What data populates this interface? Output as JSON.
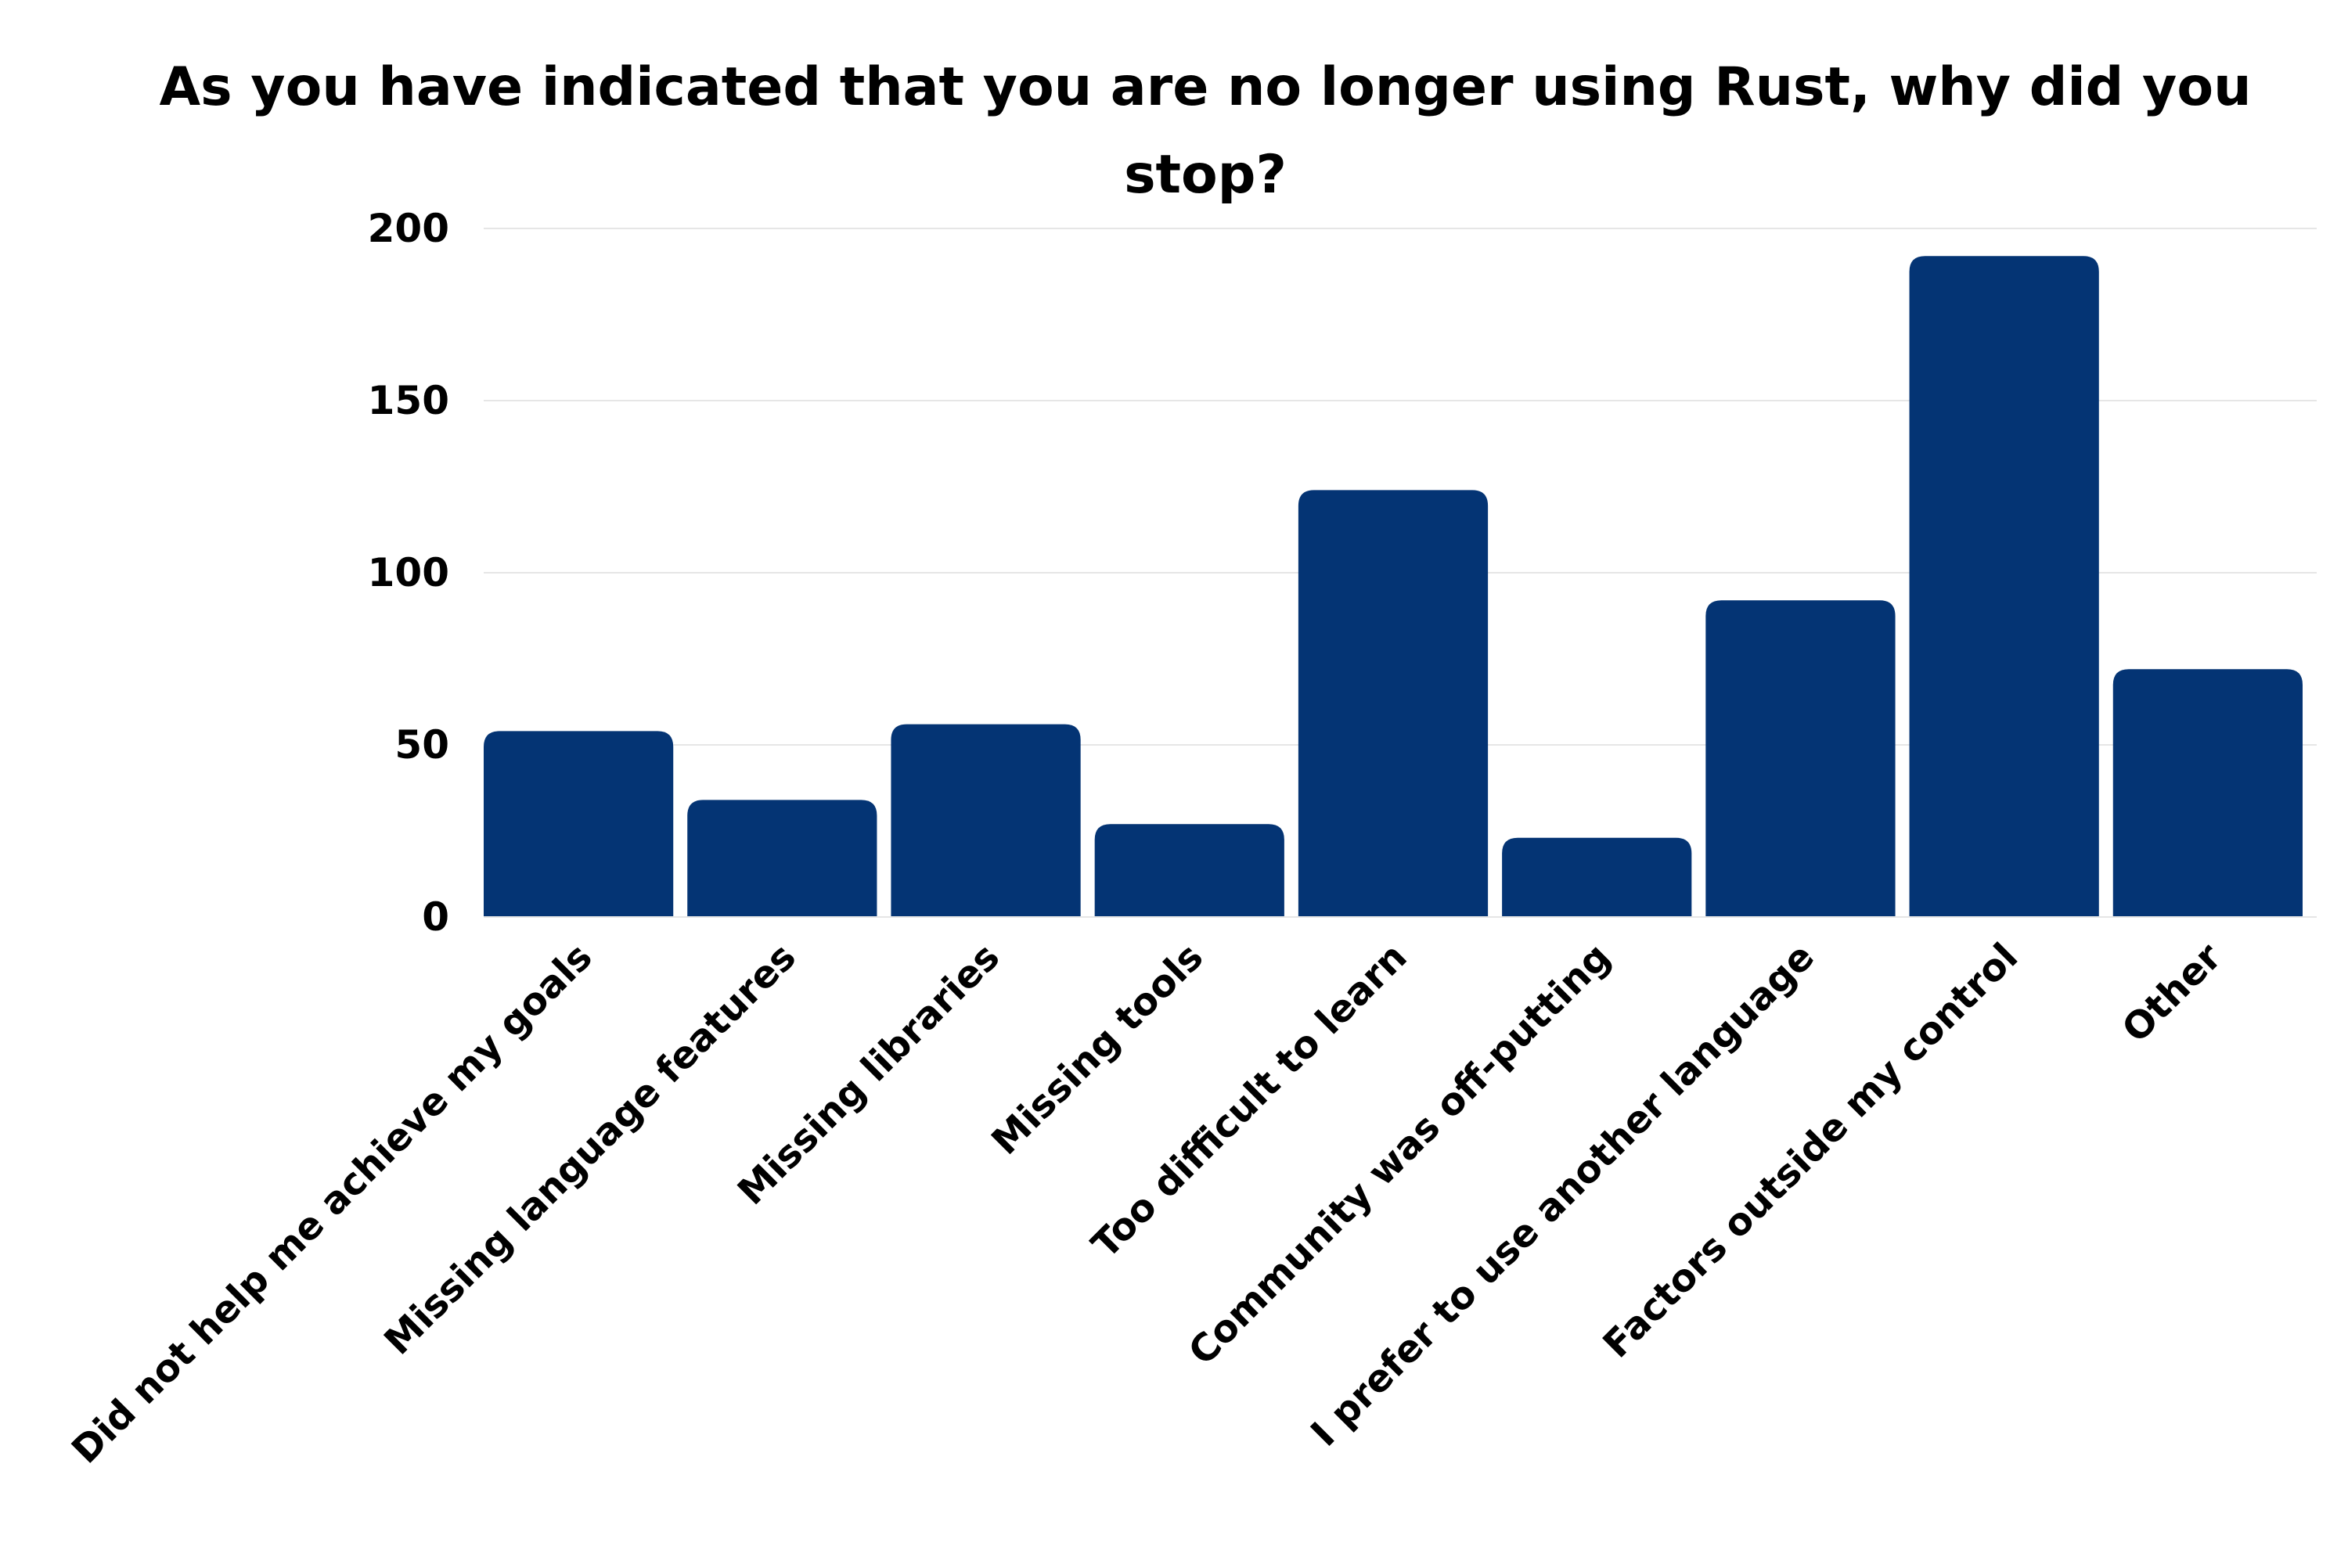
{
  "chart_data": {
    "type": "bar",
    "title": "As you have indicated that you are no longer using Rust, why did you stop?",
    "xlabel": "",
    "ylabel": "",
    "categories": [
      "Did not help me achieve my goals",
      "Missing language features",
      "Missing libraries",
      "Missing tools",
      "Too difficult to learn",
      "Community was off-putting",
      "I prefer to use another language",
      "Factors outside my control",
      "Other"
    ],
    "values": [
      54,
      34,
      56,
      27,
      124,
      23,
      92,
      192,
      72
    ],
    "ylim": [
      0,
      200
    ],
    "yticks": [
      0,
      50,
      100,
      150,
      200
    ],
    "grid": true,
    "legend": "none",
    "colors": {
      "bar": "#043474",
      "grid": "#e6e6e6",
      "text": "#000000"
    }
  }
}
